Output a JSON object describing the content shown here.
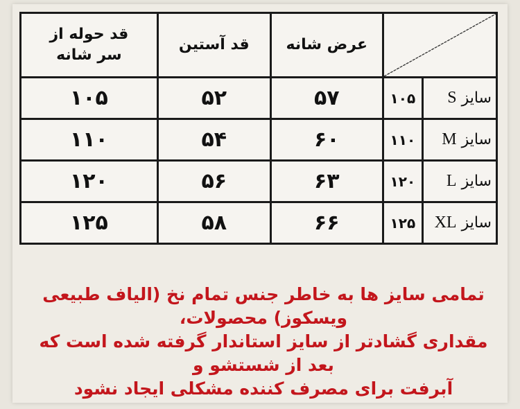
{
  "headers": {
    "towel_length": "قد حوله از سر شانه",
    "sleeve_length": "قد آستین",
    "shoulder_width": "عرض شانه"
  },
  "rows": [
    {
      "size_word": "سایز",
      "size": "S",
      "code": "۱۰۵",
      "shoulder": "۵۷",
      "sleeve": "۵۲",
      "length": "۱۰۵"
    },
    {
      "size_word": "سایز",
      "size": "M",
      "code": "۱۱۰",
      "shoulder": "۶۰",
      "sleeve": "۵۴",
      "length": "۱۱۰"
    },
    {
      "size_word": "سایز",
      "size": "L",
      "code": "۱۲۰",
      "shoulder": "۶۳",
      "sleeve": "۵۶",
      "length": "۱۲۰"
    },
    {
      "size_word": "سایز",
      "size": "XL",
      "code": "۱۲۵",
      "shoulder": "۶۶",
      "sleeve": "۵۸",
      "length": "۱۲۵"
    }
  ],
  "note_lines": [
    "تمامی سایز ها به خاطر جنس تمام نخ (الیاف طبیعی ویسکوز) محصولات،",
    "مقداری گشادتر از سایز استاندار گرفته شده است که بعد از شستشو و",
    "آبرفت برای مصرف کننده مشکلی ایجاد نشود"
  ],
  "colors": {
    "note_text": "#c3161c",
    "border": "#1a1a1a",
    "background": "#efece5"
  }
}
